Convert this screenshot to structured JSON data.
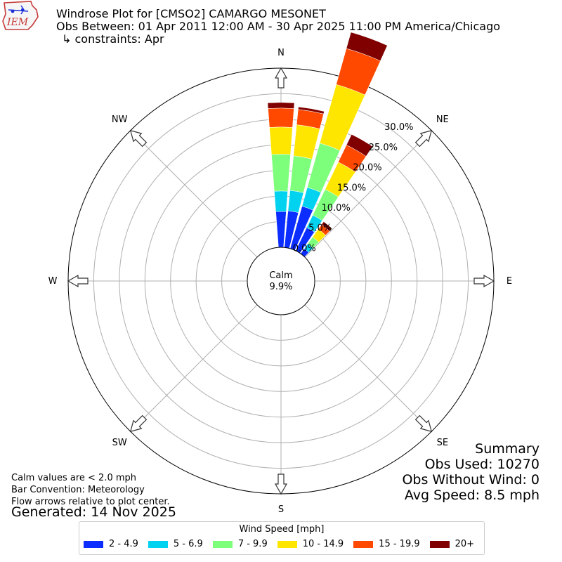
{
  "header": {
    "logo_text": "IEM",
    "title": "Windrose Plot for [CMSO2] CAMARGO MESONET",
    "obs_between": "Obs Between: 01 Apr 2011 12:00 AM - 30 Apr 2025 11:00 PM America/Chicago",
    "constraints": "↳ constraints: Apr"
  },
  "footnote": {
    "calm_note": "Calm values are < 2.0 mph",
    "bar_convention": "Bar Convention: Meteorology",
    "flow_arrows": "Flow arrows relative to plot center.",
    "generated": "Generated: 14 Nov 2025"
  },
  "summary": {
    "title": "Summary",
    "obs_used": "Obs Used: 10270",
    "obs_without_wind": "Obs Without Wind: 0",
    "avg_speed": "Avg Speed: 8.5 mph"
  },
  "legend": {
    "title": "Wind Speed [mph]",
    "items": [
      {
        "label": "2 - 4.9",
        "color": "#0b2dff"
      },
      {
        "label": "5 - 6.9",
        "color": "#00d2f0"
      },
      {
        "label": "7 - 9.9",
        "color": "#7dff7b"
      },
      {
        "label": "10 - 14.9",
        "color": "#ffe600"
      },
      {
        "label": "15 - 19.9",
        "color": "#ff4800"
      },
      {
        "label": "20+",
        "color": "#800000"
      }
    ]
  },
  "chart_data": {
    "type": "windrose",
    "calm_label": "Calm",
    "calm_value": "9.9%",
    "direction_labels": [
      "N",
      "NE",
      "E",
      "SE",
      "S",
      "SW",
      "W",
      "NW"
    ],
    "radial_tick_labels": [
      "0.0%",
      "5.0%",
      "10.0%",
      "15.0%",
      "20.0%",
      "25.0%",
      "30.0%"
    ],
    "radial_ticks": [
      0,
      5,
      10,
      15,
      20,
      25,
      30
    ],
    "rmax": 35,
    "grid": true,
    "speed_bins": [
      "2 - 4.9",
      "5 - 6.9",
      "7 - 9.9",
      "10 - 14.9",
      "15 - 19.9",
      "20+"
    ],
    "bin_colors": [
      "#0b2dff",
      "#00d2f0",
      "#7dff7b",
      "#ffe600",
      "#ff4800",
      "#800000"
    ],
    "directions": [
      {
        "deg": 0,
        "cumulative": [
          7.0,
          11.0,
          18.2,
          23.5,
          27.2,
          28.3
        ]
      },
      {
        "deg": 10,
        "cumulative": [
          7.2,
          11.2,
          18.0,
          24.1,
          27.1,
          27.6
        ]
      },
      {
        "deg": 20,
        "cumulative": [
          8.6,
          12.4,
          21.4,
          33.3,
          40.6,
          43.9
        ]
      },
      {
        "deg": 30,
        "cumulative": [
          5.0,
          7.7,
          13.3,
          19.2,
          22.9,
          25.2
        ]
      },
      {
        "deg": 40,
        "cumulative": [
          1.2,
          2.4,
          4.0,
          5.9,
          7.0,
          7.7
        ]
      }
    ]
  }
}
